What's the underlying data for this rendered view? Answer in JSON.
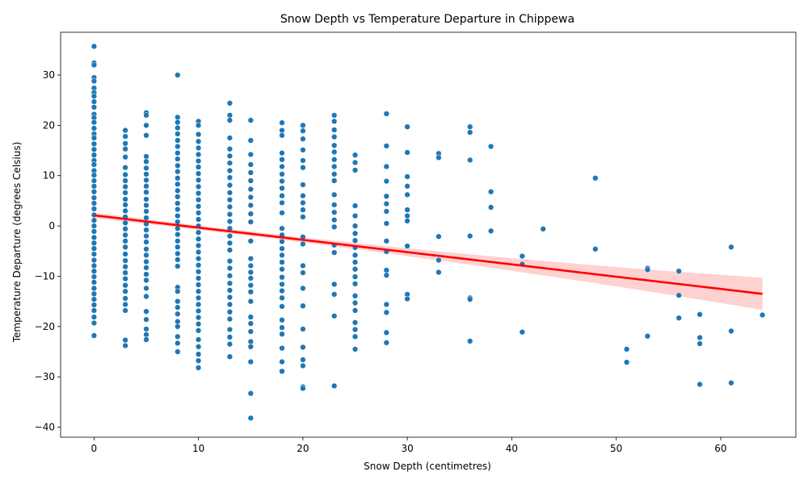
{
  "chart_data": {
    "type": "scatter",
    "title": "Snow Depth vs Temperature Departure in Chippewa",
    "xlabel": "Snow Depth (centimetres)",
    "ylabel": "Temperature Departure (degrees Celsius)",
    "xlim": [
      -3.2,
      67.2
    ],
    "ylim": [
      -42,
      38.5
    ],
    "xticks": [
      0,
      10,
      20,
      30,
      40,
      50,
      60
    ],
    "yticks": [
      -40,
      -30,
      -20,
      -10,
      0,
      10,
      20,
      30
    ],
    "tick_labels_x": [
      "0",
      "10",
      "20",
      "30",
      "40",
      "50",
      "60"
    ],
    "tick_labels_y": [
      "−40",
      "−30",
      "−20",
      "−10",
      "0",
      "10",
      "20",
      "30"
    ],
    "grid": false,
    "point_color": "#1f77b4",
    "regression": {
      "color": "#ff0000",
      "band_color": "#ffcccc",
      "start": [
        0,
        2.1
      ],
      "end": [
        64,
        -13.5
      ],
      "band_lower_at_end": -16.7,
      "band_upper_at_end": -10.3
    },
    "columns": [
      {
        "x": 0,
        "y": [
          35.7,
          32.4,
          32.0,
          29.5,
          28.8,
          27.4,
          26.5,
          25.8,
          24.7,
          23.6,
          22.2,
          21.5,
          20.6,
          19.4,
          18.3,
          17.5,
          16.3,
          15.2,
          14.1,
          13.0,
          12.2,
          11.0,
          10.1,
          9.0,
          7.9,
          6.8,
          5.6,
          4.5,
          3.4,
          2.2,
          1.1,
          0.0,
          -1.1,
          -2.3,
          -3.4,
          -4.5,
          -5.6,
          -6.8,
          -7.9,
          -9.0,
          -10.1,
          -11.2,
          -12.4,
          -13.5,
          -14.6,
          -15.7,
          -16.8,
          -18.1,
          -19.3,
          -21.8
        ]
      },
      {
        "x": 3,
        "y": [
          19.0,
          17.8,
          16.4,
          15.3,
          13.7,
          11.6,
          10.2,
          9.0,
          7.8,
          6.6,
          5.3,
          4.2,
          3.0,
          1.8,
          0.6,
          -0.6,
          -1.8,
          -3.0,
          -4.2,
          -5.6,
          -6.9,
          -8.1,
          -9.3,
          -10.5,
          -11.8,
          -13.0,
          -14.4,
          -15.6,
          -16.8,
          -22.7,
          -23.8
        ]
      },
      {
        "x": 5,
        "y": [
          22.5,
          22.0,
          20.0,
          18.0,
          13.8,
          12.8,
          11.5,
          10.3,
          9.1,
          7.9,
          6.7,
          5.3,
          4.1,
          2.9,
          1.6,
          0.4,
          -0.8,
          -2.0,
          -3.2,
          -4.6,
          -5.8,
          -7.1,
          -8.3,
          -9.6,
          -10.8,
          -12.4,
          -14.0,
          -17.0,
          -18.6,
          -20.5,
          -21.6,
          -22.6
        ]
      },
      {
        "x": 8,
        "y": [
          30.0,
          21.6,
          20.6,
          19.5,
          18.3,
          17.0,
          15.8,
          14.5,
          13.3,
          12.0,
          10.8,
          9.5,
          8.3,
          7.0,
          5.8,
          4.5,
          3.3,
          2.0,
          0.8,
          -0.5,
          -1.7,
          -3.0,
          -4.2,
          -5.5,
          -6.7,
          -8.0,
          -12.2,
          -13.0,
          -15.0,
          -16.2,
          -17.5,
          -19.0,
          -20.0,
          -22.0,
          -23.3,
          -25.0
        ]
      },
      {
        "x": 10,
        "y": [
          20.8,
          20.0,
          18.2,
          16.8,
          15.5,
          14.2,
          12.9,
          11.7,
          10.4,
          9.1,
          7.8,
          6.5,
          5.2,
          3.9,
          2.6,
          1.3,
          0.0,
          -1.3,
          -2.6,
          -3.9,
          -5.2,
          -6.5,
          -7.8,
          -9.1,
          -10.4,
          -11.7,
          -13.0,
          -14.3,
          -15.6,
          -16.9,
          -18.2,
          -19.5,
          -20.8,
          -22.6,
          -24.0,
          -25.5,
          -26.8,
          -28.2
        ]
      },
      {
        "x": 13,
        "y": [
          24.4,
          22.0,
          21.0,
          17.5,
          15.3,
          13.9,
          12.5,
          11.0,
          9.6,
          8.1,
          6.6,
          5.2,
          3.8,
          2.3,
          0.9,
          -0.5,
          -2.0,
          -3.4,
          -4.8,
          -7.0,
          -8.4,
          -9.9,
          -11.4,
          -12.8,
          -14.2,
          -15.6,
          -17.1,
          -18.5,
          -20.6,
          -22.1,
          -23.5,
          -26.0
        ]
      },
      {
        "x": 15,
        "y": [
          21.0,
          17.0,
          14.2,
          12.2,
          10.6,
          9.0,
          7.3,
          5.7,
          4.1,
          2.4,
          0.8,
          -3.0,
          -6.5,
          -7.9,
          -9.2,
          -10.4,
          -11.8,
          -13.1,
          -15.0,
          -18.1,
          -19.4,
          -21.0,
          -23.0,
          -24.0,
          -27.0,
          -33.3,
          -38.2
        ]
      },
      {
        "x": 18,
        "y": [
          20.5,
          19.0,
          18.0,
          14.5,
          13.2,
          11.8,
          10.3,
          8.9,
          7.5,
          6.0,
          4.6,
          2.6,
          -0.5,
          -1.8,
          -3.1,
          -4.5,
          -5.8,
          -7.2,
          -8.6,
          -10.2,
          -11.6,
          -12.9,
          -14.3,
          -16.0,
          -18.7,
          -20.2,
          -21.5,
          -24.3,
          -27.0,
          -28.9
        ]
      },
      {
        "x": 20,
        "y": [
          20.0,
          18.9,
          17.3,
          15.1,
          13.0,
          11.6,
          8.2,
          6.0,
          4.6,
          3.2,
          1.8,
          -2.2,
          -3.6,
          -7.9,
          -9.3,
          -12.4,
          -15.9,
          -20.5,
          -24.1,
          -26.6,
          -27.8,
          -32.0,
          -32.3
        ]
      },
      {
        "x": 23,
        "y": [
          22.0,
          20.8,
          19.1,
          17.7,
          16.0,
          14.7,
          13.2,
          11.8,
          10.3,
          9.0,
          6.2,
          4.2,
          2.7,
          1.2,
          -0.2,
          -3.8,
          -5.3,
          -11.6,
          -13.6,
          -17.9,
          -31.8
        ]
      },
      {
        "x": 25,
        "y": [
          14.1,
          12.6,
          11.1,
          4.0,
          2.0,
          0.0,
          -1.5,
          -2.9,
          -4.3,
          -5.8,
          -7.2,
          -8.6,
          -10.1,
          -11.5,
          -13.9,
          -15.3,
          -16.8,
          -19.2,
          -20.6,
          -22.0,
          -24.5
        ]
      },
      {
        "x": 28,
        "y": [
          22.3,
          15.9,
          11.8,
          8.9,
          5.9,
          4.4,
          2.9,
          0.5,
          -3.0,
          -5.1,
          -8.8,
          -9.8,
          -15.6,
          -17.2,
          -21.2,
          -23.2
        ]
      },
      {
        "x": 30,
        "y": [
          19.7,
          14.6,
          9.8,
          7.9,
          6.2,
          3.2,
          2.0,
          1.0,
          -4.0,
          -13.6,
          -14.5
        ]
      },
      {
        "x": 33,
        "y": [
          14.4,
          13.6,
          -2.1,
          -6.8,
          -9.2
        ]
      },
      {
        "x": 36,
        "y": [
          19.7,
          18.6,
          13.1,
          -2.0,
          -14.3,
          -14.6,
          -22.9
        ]
      },
      {
        "x": 38,
        "y": [
          15.8,
          6.8,
          3.7,
          -1.0
        ]
      },
      {
        "x": 41,
        "y": [
          -6.0,
          -7.6,
          -21.1
        ]
      },
      {
        "x": 43,
        "y": [
          -0.6
        ]
      },
      {
        "x": 48,
        "y": [
          9.5,
          -4.6
        ]
      },
      {
        "x": 51,
        "y": [
          -24.5,
          -27.1
        ]
      },
      {
        "x": 53,
        "y": [
          -8.4,
          -8.7,
          -21.9
        ]
      },
      {
        "x": 56,
        "y": [
          -9.0,
          -13.8,
          -18.3
        ]
      },
      {
        "x": 58,
        "y": [
          -17.6,
          -22.2,
          -23.4,
          -31.5
        ]
      },
      {
        "x": 61,
        "y": [
          -4.2,
          -20.9,
          -31.2
        ]
      },
      {
        "x": 64,
        "y": [
          -17.7
        ]
      }
    ]
  }
}
